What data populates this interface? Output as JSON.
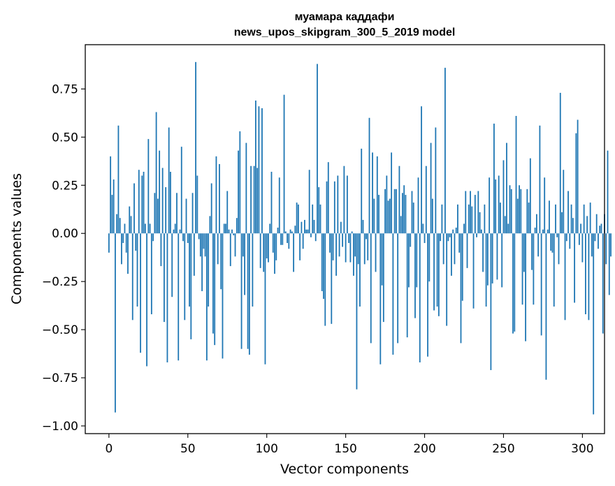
{
  "chart_data": {
    "type": "bar",
    "title_lines": [
      "муамара каддафи",
      "news_upos_skipgram_300_5_2019 model"
    ],
    "xlabel": "Vector components",
    "ylabel": "Components values",
    "xlim": [
      -15,
      314
    ],
    "ylim": [
      -1.04,
      0.98
    ],
    "xticks": [
      0,
      50,
      100,
      150,
      200,
      250,
      300
    ],
    "xtick_labels": [
      "0",
      "50",
      "100",
      "150",
      "200",
      "250",
      "300"
    ],
    "yticks": [
      -1.0,
      -0.75,
      -0.5,
      -0.25,
      0.0,
      0.25,
      0.5,
      0.75
    ],
    "ytick_labels": [
      "−1.00",
      "−0.75",
      "−0.50",
      "−0.25",
      "0.00",
      "0.25",
      "0.50",
      "0.75"
    ],
    "grid": false,
    "bar_color": "#1f77b4",
    "x_start": 0,
    "values": [
      -0.1,
      0.4,
      0.2,
      0.28,
      -0.93,
      0.1,
      0.56,
      0.08,
      -0.16,
      -0.05,
      0.05,
      -0.1,
      -0.21,
      0.14,
      0.09,
      -0.45,
      0.26,
      -0.09,
      -0.38,
      0.33,
      -0.62,
      0.3,
      0.32,
      0.05,
      -0.69,
      0.49,
      0.05,
      -0.42,
      -0.04,
      0.21,
      0.63,
      0.18,
      0.43,
      -0.17,
      0.34,
      -0.46,
      0.24,
      -0.67,
      0.55,
      0.32,
      -0.33,
      0.02,
      0.05,
      0.21,
      -0.66,
      0.02,
      0.45,
      -0.04,
      -0.45,
      0.18,
      -0.05,
      -0.38,
      -0.55,
      0.21,
      -0.22,
      0.89,
      0.3,
      -0.03,
      -0.12,
      -0.3,
      -0.08,
      -0.12,
      -0.66,
      -0.38,
      0.09,
      0.26,
      -0.52,
      -0.58,
      0.4,
      -0.16,
      0.36,
      -0.29,
      -0.65,
      0.05,
      0.05,
      0.22,
      0.02,
      -0.17,
      0.02,
      -0.01,
      -0.12,
      0.08,
      0.43,
      0.53,
      -0.6,
      -0.12,
      -0.32,
      0.47,
      -0.6,
      -0.63,
      0.35,
      -0.38,
      0.35,
      0.69,
      0.34,
      0.66,
      -0.18,
      0.65,
      -0.2,
      -0.68,
      -0.13,
      -0.15,
      0.05,
      0.32,
      -0.1,
      -0.21,
      -0.14,
      0.03,
      0.29,
      -0.06,
      -0.06,
      0.72,
      0.01,
      -0.05,
      -0.08,
      0.02,
      0.01,
      -0.2,
      0.04,
      0.16,
      0.15,
      -0.14,
      0.06,
      -0.08,
      0.07,
      0.02,
      0.02,
      0.33,
      -0.02,
      0.15,
      0.07,
      -0.04,
      0.88,
      0.24,
      0.15,
      -0.3,
      -0.34,
      -0.48,
      0.27,
      0.37,
      -0.1,
      -0.47,
      -0.14,
      0.27,
      -0.22,
      0.3,
      -0.12,
      0.06,
      -0.07,
      0.35,
      -0.15,
      0.3,
      -0.05,
      -0.15,
      0.01,
      -0.22,
      -0.12,
      -0.81,
      -0.16,
      -0.38,
      0.44,
      0.07,
      -0.16,
      -0.03,
      -0.14,
      0.6,
      -0.57,
      0.42,
      0.18,
      -0.2,
      0.4,
      0.2,
      -0.68,
      -0.27,
      -0.46,
      0.23,
      0.3,
      0.17,
      0.18,
      0.42,
      -0.63,
      0.23,
      0.23,
      -0.57,
      0.35,
      0.09,
      0.21,
      0.25,
      0.2,
      -0.54,
      -0.28,
      -0.07,
      0.22,
      0.16,
      -0.44,
      -0.28,
      0.29,
      -0.67,
      0.66,
      0.05,
      -0.05,
      0.35,
      -0.64,
      -0.25,
      0.47,
      0.18,
      -0.4,
      0.55,
      -0.38,
      -0.43,
      -0.04,
      0.15,
      -0.16,
      0.86,
      -0.48,
      -0.04,
      -0.02,
      -0.22,
      0.02,
      -0.16,
      0.03,
      0.15,
      -0.1,
      -0.57,
      -0.35,
      0.05,
      0.22,
      -0.18,
      0.15,
      0.22,
      0.14,
      -0.39,
      0.2,
      -0.02,
      0.22,
      0.11,
      0.02,
      -0.2,
      0.15,
      -0.38,
      -0.27,
      0.29,
      -0.71,
      -0.26,
      0.57,
      0.28,
      -0.24,
      0.3,
      0.16,
      -0.28,
      0.38,
      0.09,
      0.47,
      0.05,
      0.25,
      0.23,
      -0.52,
      -0.51,
      0.61,
      0.18,
      0.25,
      0.23,
      -0.37,
      -0.2,
      -0.56,
      0.23,
      0.16,
      0.39,
      -0.19,
      -0.37,
      0.03,
      0.1,
      -0.12,
      0.56,
      -0.53,
      0.02,
      0.29,
      -0.76,
      0.02,
      0.17,
      -0.09,
      -0.1,
      -0.38,
      0.15,
      -0.02,
      -0.16,
      0.73,
      0.11,
      0.33,
      -0.45,
      -0.04,
      0.22,
      -0.08,
      0.15,
      0.08,
      -0.36,
      0.52,
      0.59,
      -0.06,
      0.05,
      -0.15,
      0.15,
      -0.42,
      0.09,
      -0.45,
      0.16,
      -0.12,
      -0.94,
      -0.04,
      0.1,
      -0.08,
      0.04,
      0.05,
      -0.52,
      0.1,
      -0.16,
      0.43,
      -0.32,
      -0.12
    ]
  }
}
